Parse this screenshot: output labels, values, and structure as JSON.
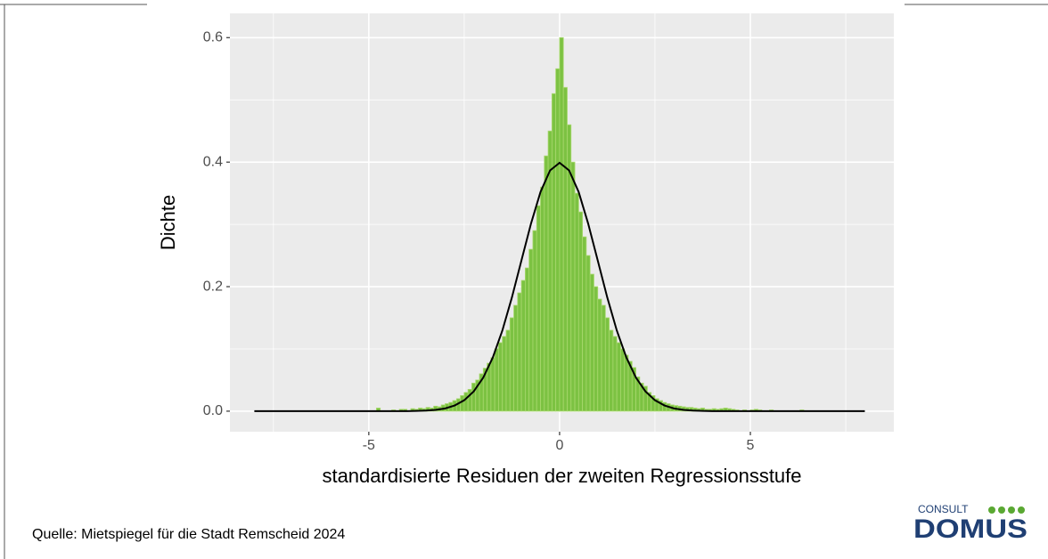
{
  "chart_data": {
    "type": "histogram",
    "x_label": "standardisierte Residuen der zweiten Regressionsstufe",
    "y_label": "Dichte",
    "source": "Quelle: Mietspiegel für die Stadt Remscheid 2024",
    "logo": {
      "top": "CONSULT",
      "main": "DOMUS"
    },
    "bins": [
      -5.0,
      -4.9,
      -4.8,
      -4.7,
      -4.6,
      -4.5,
      -4.4,
      -4.3,
      -4.2,
      -4.1,
      -4.0,
      -3.9,
      -3.8,
      -3.7,
      -3.6,
      -3.5,
      -3.4,
      -3.3,
      -3.2,
      -3.1,
      -3.0,
      -2.9,
      -2.8,
      -2.7,
      -2.6,
      -2.5,
      -2.4,
      -2.3,
      -2.2,
      -2.1,
      -2.0,
      -1.9,
      -1.8,
      -1.7,
      -1.6,
      -1.5,
      -1.4,
      -1.3,
      -1.2,
      -1.1,
      -1.0,
      -0.9,
      -0.8,
      -0.7,
      -0.6,
      -0.5,
      -0.4,
      -0.3,
      -0.2,
      -0.1,
      0,
      0.1,
      0.2,
      0.3,
      0.4,
      0.5,
      0.6,
      0.7,
      0.8,
      0.9,
      1.0,
      1.1,
      1.2,
      1.3,
      1.4,
      1.5,
      1.6,
      1.7,
      1.8,
      1.9,
      2.0,
      2.1,
      2.2,
      2.3,
      2.4,
      2.5,
      2.6,
      2.7,
      2.8,
      2.9,
      3.0,
      3.1,
      3.2,
      3.3,
      3.4,
      3.5,
      3.6,
      3.7,
      3.8,
      3.9,
      4.0,
      4.1,
      4.2,
      4.3,
      4.4,
      4.5,
      4.6,
      4.7,
      4.8,
      4.9,
      5.0,
      5.1,
      5.2,
      5.3,
      5.4,
      5.5,
      5.6,
      5.7,
      5.8,
      5.9,
      6.0,
      6.1,
      6.2,
      6.3,
      6.4,
      6.5
    ],
    "values": [
      0,
      0,
      0.005,
      0,
      0,
      0,
      0.002,
      0,
      0.003,
      0.003,
      0,
      0.004,
      0.003,
      0.005,
      0.004,
      0.006,
      0.005,
      0.008,
      0.007,
      0.01,
      0.012,
      0.014,
      0.017,
      0.02,
      0.025,
      0.03,
      0.035,
      0.045,
      0.05,
      0.06,
      0.069,
      0.077,
      0.086,
      0.1,
      0.11,
      0.12,
      0.13,
      0.15,
      0.17,
      0.19,
      0.21,
      0.23,
      0.26,
      0.29,
      0.33,
      0.36,
      0.41,
      0.45,
      0.51,
      0.55,
      0.6,
      0.52,
      0.46,
      0.4,
      0.35,
      0.32,
      0.28,
      0.25,
      0.22,
      0.2,
      0.18,
      0.17,
      0.15,
      0.13,
      0.12,
      0.11,
      0.1,
      0.09,
      0.08,
      0.07,
      0.055,
      0.045,
      0.04,
      0.03,
      0.025,
      0.02,
      0.017,
      0.014,
      0.012,
      0.01,
      0.009,
      0.008,
      0.007,
      0.006,
      0.006,
      0.005,
      0.004,
      0.005,
      0.003,
      0.003,
      0.004,
      0.003,
      0.004,
      0.005,
      0.004,
      0.003,
      0.002,
      0,
      0.002,
      0,
      0.002,
      0.003,
      0.002,
      0,
      0,
      0.002,
      0,
      0,
      0,
      0,
      0,
      0,
      0,
      0.002,
      0
    ],
    "color": "#7cc242",
    "edge_color": "#a8d86e",
    "curve": {
      "color": "#000000",
      "x": [
        -8,
        -6,
        -4,
        -3.75,
        -3.5,
        -3.25,
        -3,
        -2.75,
        -2.5,
        -2.25,
        -2,
        -1.75,
        -1.5,
        -1.25,
        -1,
        -0.75,
        -0.5,
        -0.25,
        0,
        0.25,
        0.5,
        0.75,
        1,
        1.25,
        1.5,
        1.75,
        2,
        2.25,
        2.5,
        2.75,
        3,
        3.25,
        3.5,
        3.75,
        4,
        6,
        8
      ],
      "values": [
        0,
        0,
        0.0001,
        0.0004,
        0.0009,
        0.002,
        0.0044,
        0.0091,
        0.0175,
        0.0317,
        0.054,
        0.0863,
        0.1295,
        0.1826,
        0.242,
        0.3011,
        0.3521,
        0.3867,
        0.399,
        0.3867,
        0.3521,
        0.3011,
        0.242,
        0.1826,
        0.1295,
        0.0863,
        0.054,
        0.0317,
        0.0175,
        0.0091,
        0.0044,
        0.002,
        0.0009,
        0.0004,
        0.0001,
        0,
        0
      ]
    },
    "xlim": [
      -8.64,
      8.76
    ],
    "ylim": [
      -0.033,
      0.639
    ],
    "xticks": [
      -5,
      0,
      5
    ],
    "yticks": [
      {
        "value": 0,
        "label": "0.0"
      },
      {
        "value": 0.2,
        "label": "0.2"
      },
      {
        "value": 0.4,
        "label": "0.4"
      },
      {
        "value": 0.6,
        "label": "0.6"
      }
    ],
    "xminor": [
      -7.5,
      -2.5,
      2.5,
      7.5
    ],
    "yminor": [
      0.1,
      0.3,
      0.5
    ],
    "grid": true,
    "panel_color": "#ebebeb"
  }
}
